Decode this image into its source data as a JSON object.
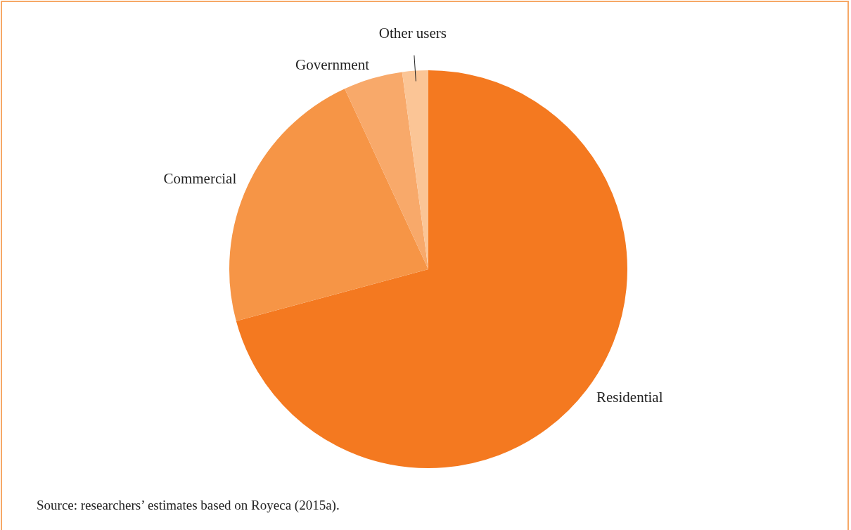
{
  "chart_data": {
    "type": "pie",
    "categories": [
      "Residential",
      "Commercial",
      "Government",
      "Other users"
    ],
    "values": [
      70.8,
      22.3,
      4.8,
      2.1
    ],
    "colors": [
      "#f47920",
      "#f69546",
      "#f8a96a",
      "#fbc596"
    ],
    "legend": false,
    "annotations": [
      "Source: researchers’ estimates based on Royeca (2015a)."
    ]
  }
}
